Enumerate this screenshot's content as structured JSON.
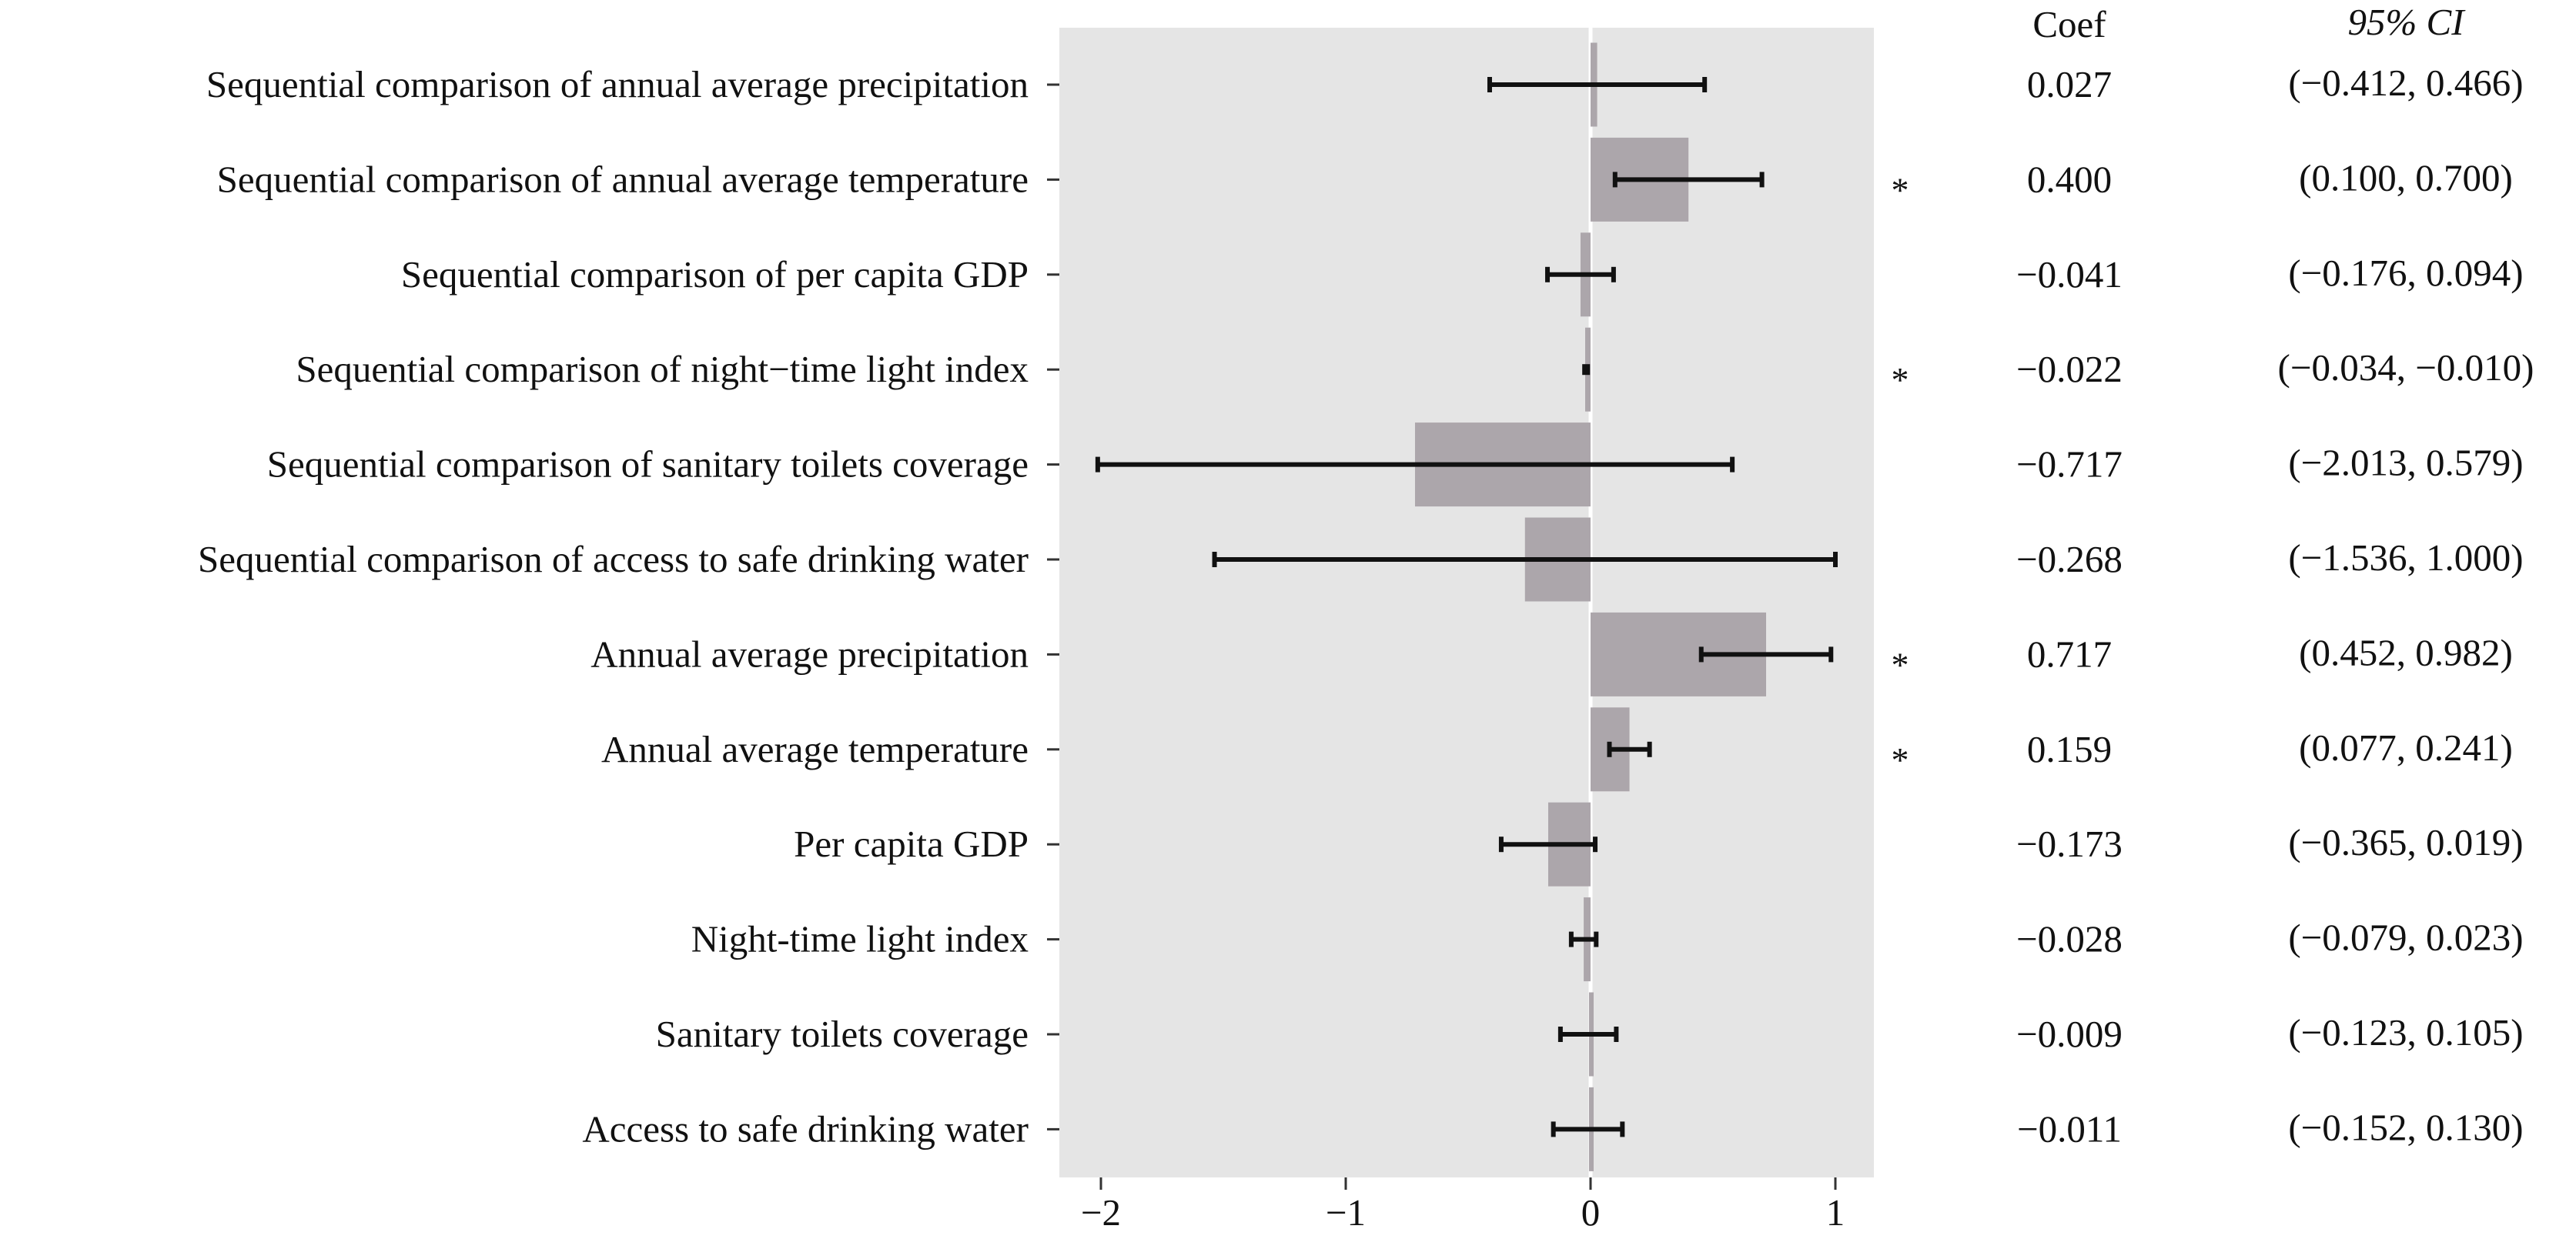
{
  "chart_data": {
    "type": "bar",
    "orientation": "horizontal",
    "categories": [
      "Sequential comparison of annual average precipitation",
      "Sequential comparison of annual average temperature",
      "Sequential comparison of per capita GDP",
      "Sequential comparison of night−time light index",
      "Sequential comparison of sanitary toilets coverage",
      "Sequential comparison of access to safe drinking water",
      "Annual average precipitation",
      "Annual average temperature",
      "Per capita GDP",
      "Night-time light index",
      "Sanitary toilets coverage",
      "Access to safe drinking water"
    ],
    "values": [
      0.027,
      0.4,
      -0.041,
      -0.022,
      -0.717,
      -0.268,
      0.717,
      0.159,
      -0.173,
      -0.028,
      -0.009,
      -0.011
    ],
    "ci_lower": [
      -0.412,
      0.1,
      -0.176,
      -0.034,
      -2.013,
      -1.536,
      0.452,
      0.077,
      -0.365,
      -0.079,
      -0.123,
      -0.152
    ],
    "ci_upper": [
      0.466,
      0.7,
      0.094,
      -0.01,
      0.579,
      1.0,
      0.982,
      0.241,
      0.019,
      0.023,
      0.105,
      0.13
    ],
    "significant": [
      false,
      true,
      false,
      true,
      false,
      false,
      true,
      true,
      false,
      false,
      false,
      false
    ],
    "significance_marker": "*",
    "coef_labels": [
      "0.027",
      "0.400",
      "−0.041",
      "−0.022",
      "−0.717",
      "−0.268",
      "0.717",
      "0.159",
      "−0.173",
      "−0.028",
      "−0.009",
      "−0.011"
    ],
    "ci_labels": [
      "(−0.412, 0.466)",
      "(0.100, 0.700)",
      "(−0.176, 0.094)",
      "(−0.034, −0.010)",
      "(−2.013, 0.579)",
      "(−1.536, 1.000)",
      "(0.452, 0.982)",
      "(0.077, 0.241)",
      "(−0.365, 0.019)",
      "(−0.079, 0.023)",
      "(−0.123, 0.105)",
      "(−0.152, 0.130)"
    ],
    "coef_header": "Coef",
    "ci_header": "95% CI",
    "xticks": [
      -2,
      -1,
      0,
      1
    ],
    "xtick_labels": [
      "−2",
      "−1",
      "0",
      "1"
    ],
    "xlim": [
      -2.17,
      1.17
    ],
    "grid": false,
    "title": "",
    "xlabel": "",
    "ylabel": "",
    "colors": {
      "panel": "#e5e5e5",
      "bar": "#aca6ab",
      "errorbar": "#111111",
      "zero_line": "#ffffff",
      "text": "#111111"
    }
  }
}
